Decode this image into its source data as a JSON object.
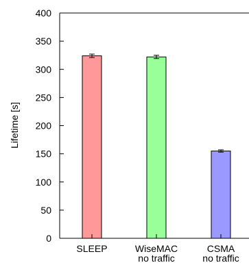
{
  "chart_data": {
    "type": "bar",
    "categories": [
      "SLEEP",
      "WiseMAC no traffic",
      "CSMA no traffic"
    ],
    "category_lines": [
      [
        "SLEEP"
      ],
      [
        "WiseMAC",
        "no traffic"
      ],
      [
        "CSMA",
        "no traffic"
      ]
    ],
    "values": [
      324,
      322,
      155
    ],
    "errors": [
      3,
      3,
      2
    ],
    "colors": [
      "#ff9999",
      "#99ff99",
      "#9999ff"
    ],
    "title": "",
    "xlabel": "",
    "ylabel": "Lifetime [s]",
    "ylim": [
      0,
      400
    ],
    "yticks": [
      0,
      50,
      100,
      150,
      200,
      250,
      300,
      350,
      400
    ],
    "grid": false,
    "legend": "none"
  }
}
